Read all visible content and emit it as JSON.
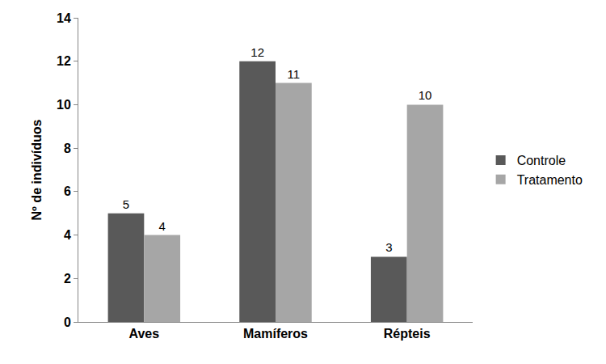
{
  "chart_data": {
    "type": "bar",
    "y_label": "Nº de indivíduos",
    "categories": [
      "Aves",
      "Mamíferos",
      "Répteis"
    ],
    "series": [
      {
        "name": "Controle",
        "color": "#595959",
        "values": [
          5,
          12,
          3
        ]
      },
      {
        "name": "Tratamento",
        "color": "#a6a6a6",
        "values": [
          4,
          11,
          10
        ]
      }
    ],
    "ylim": [
      0,
      14
    ],
    "yticks": [
      0,
      2,
      4,
      6,
      8,
      10,
      12,
      14
    ],
    "grid": false,
    "legend": "right",
    "data_labels": true
  }
}
